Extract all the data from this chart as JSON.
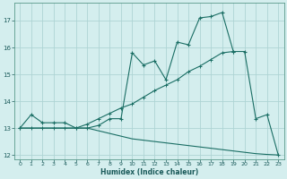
{
  "xlabel": "Humidex (Indice chaleur)",
  "background_color": "#d4eeee",
  "grid_color": "#aed4d4",
  "line_color": "#1a6e64",
  "xlim": [
    -0.5,
    23.5
  ],
  "ylim": [
    11.85,
    17.65
  ],
  "yticks": [
    12,
    13,
    14,
    15,
    16,
    17
  ],
  "xticks": [
    0,
    1,
    2,
    3,
    4,
    5,
    6,
    7,
    8,
    9,
    10,
    11,
    12,
    13,
    14,
    15,
    16,
    17,
    18,
    19,
    20,
    21,
    22,
    23
  ],
  "line1_x": [
    0,
    1,
    2,
    3,
    4,
    5,
    6,
    7,
    8,
    9,
    10,
    11,
    12,
    13,
    14,
    15,
    16,
    17,
    18,
    19,
    20,
    21,
    22,
    23
  ],
  "line1_y": [
    13.0,
    13.5,
    13.2,
    13.2,
    13.2,
    13.0,
    13.0,
    13.1,
    13.35,
    13.35,
    15.8,
    15.35,
    15.5,
    14.8,
    16.2,
    16.1,
    17.1,
    17.15,
    17.3,
    15.85,
    15.85,
    13.35,
    13.5,
    12.0
  ],
  "line2_x": [
    0,
    1,
    2,
    3,
    4,
    5,
    6,
    7,
    8,
    9,
    10,
    11,
    12,
    13,
    14,
    15,
    16,
    17,
    18,
    19
  ],
  "line2_y": [
    13.0,
    13.0,
    13.0,
    13.0,
    13.0,
    13.0,
    13.15,
    13.35,
    13.55,
    13.75,
    13.9,
    14.15,
    14.4,
    14.6,
    14.8,
    15.1,
    15.3,
    15.55,
    15.8,
    15.85
  ],
  "line3_x": [
    0,
    1,
    2,
    3,
    4,
    5,
    6,
    7,
    8,
    9,
    10,
    11,
    12,
    13,
    14,
    15,
    16,
    17,
    18,
    19,
    20,
    21,
    22,
    23
  ],
  "line3_y": [
    13.0,
    13.0,
    13.0,
    13.0,
    13.0,
    13.0,
    13.0,
    12.9,
    12.8,
    12.7,
    12.6,
    12.55,
    12.5,
    12.45,
    12.4,
    12.35,
    12.3,
    12.25,
    12.2,
    12.15,
    12.1,
    12.05,
    12.02,
    12.0
  ]
}
